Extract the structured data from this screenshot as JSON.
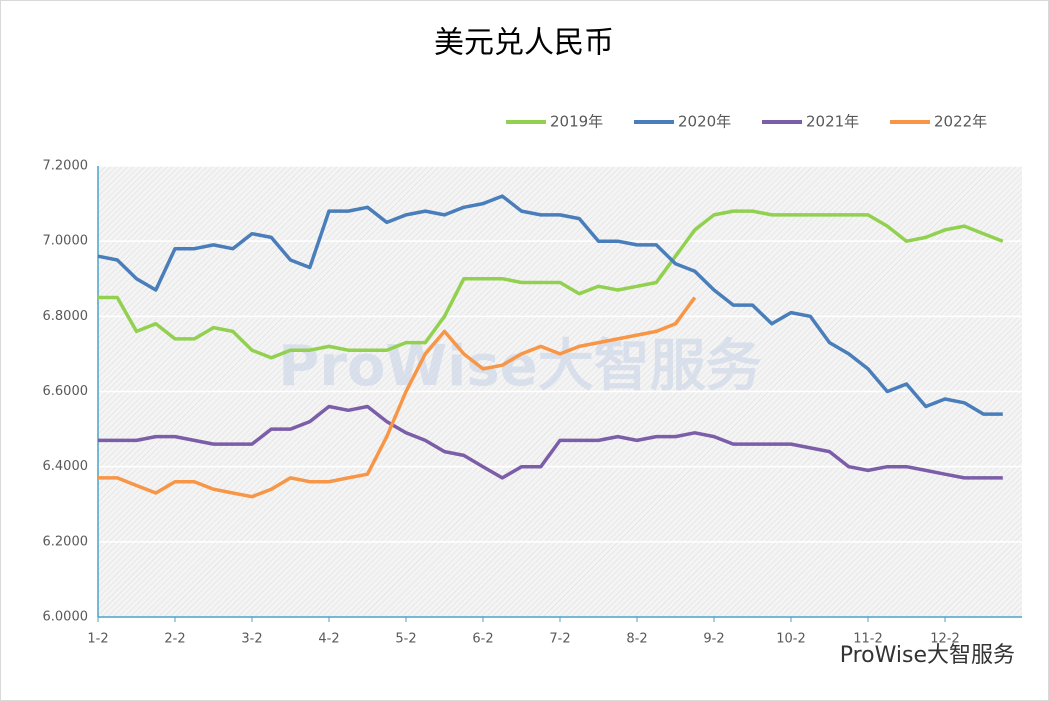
{
  "chart_data": {
    "type": "line",
    "title": "美元兑人民币",
    "categories": [
      "1-2",
      null,
      null,
      null,
      "2-2",
      null,
      null,
      null,
      "3-2",
      null,
      null,
      null,
      "4-2",
      null,
      null,
      null,
      "5-2",
      null,
      null,
      null,
      "6-2",
      null,
      null,
      null,
      "7-2",
      null,
      null,
      null,
      "8-2",
      null,
      null,
      null,
      "9-2",
      null,
      null,
      null,
      "10-2",
      null,
      null,
      null,
      "11-2",
      null,
      null,
      null,
      "12-2",
      null,
      null,
      null
    ],
    "series": [
      {
        "name": "2019年",
        "color": "#92d050",
        "values": [
          6.85,
          6.85,
          6.76,
          6.78,
          6.74,
          6.74,
          6.77,
          6.76,
          6.71,
          6.69,
          6.71,
          6.71,
          6.72,
          6.71,
          6.71,
          6.71,
          6.73,
          6.73,
          6.8,
          6.9,
          6.9,
          6.9,
          6.89,
          6.89,
          6.89,
          6.86,
          6.88,
          6.87,
          6.88,
          6.89,
          6.96,
          7.03,
          7.07,
          7.08,
          7.08,
          7.07,
          7.07,
          7.07,
          7.07,
          7.07,
          7.07,
          7.04,
          7.0,
          7.01,
          7.03,
          7.04,
          7.02,
          7.0
        ]
      },
      {
        "name": "2020年",
        "color": "#4a7ebb",
        "values": [
          6.96,
          6.95,
          6.9,
          6.87,
          6.98,
          6.98,
          6.99,
          6.98,
          7.02,
          7.01,
          6.95,
          6.93,
          7.08,
          7.08,
          7.09,
          7.05,
          7.07,
          7.08,
          7.07,
          7.09,
          7.1,
          7.12,
          7.08,
          7.07,
          7.07,
          7.06,
          7.0,
          7.0,
          6.99,
          6.99,
          6.94,
          6.92,
          6.87,
          6.83,
          6.83,
          6.78,
          6.81,
          6.8,
          6.73,
          6.7,
          6.66,
          6.6,
          6.62,
          6.56,
          6.58,
          6.57,
          6.54,
          6.54
        ]
      },
      {
        "name": "2021年",
        "color": "#7b5ea7",
        "values": [
          6.47,
          6.47,
          6.47,
          6.48,
          6.48,
          6.47,
          6.46,
          6.46,
          6.46,
          6.5,
          6.5,
          6.52,
          6.56,
          6.55,
          6.56,
          6.52,
          6.49,
          6.47,
          6.44,
          6.43,
          6.4,
          6.37,
          6.4,
          6.4,
          6.47,
          6.47,
          6.47,
          6.48,
          6.47,
          6.48,
          6.48,
          6.49,
          6.48,
          6.46,
          6.46,
          6.46,
          6.46,
          6.45,
          6.44,
          6.4,
          6.39,
          6.4,
          6.4,
          6.39,
          6.38,
          6.37,
          6.37,
          6.37
        ]
      },
      {
        "name": "2022年",
        "color": "#f79646",
        "values": [
          6.37,
          6.37,
          6.35,
          6.33,
          6.36,
          6.36,
          6.34,
          6.33,
          6.32,
          6.34,
          6.37,
          6.36,
          6.36,
          6.37,
          6.38,
          6.48,
          6.6,
          6.7,
          6.76,
          6.7,
          6.66,
          6.67,
          6.7,
          6.72,
          6.7,
          6.72,
          6.73,
          6.74,
          6.75,
          6.76,
          6.78,
          6.85,
          null,
          null,
          null,
          null,
          null,
          null,
          null,
          null,
          null,
          null,
          null,
          null,
          null,
          null,
          null,
          null
        ]
      }
    ],
    "ylim": [
      6.0,
      7.2
    ],
    "yticks": [
      {
        "value": 6.0,
        "label": "6.0000"
      },
      {
        "value": 6.2,
        "label": "6.2000"
      },
      {
        "value": 6.4,
        "label": "6.4000"
      },
      {
        "value": 6.6,
        "label": "6.6000"
      },
      {
        "value": 6.8,
        "label": "6.8000"
      },
      {
        "value": 7.0,
        "label": "7.0000"
      },
      {
        "value": 7.2,
        "label": "7.2000"
      }
    ],
    "grid": true,
    "legend": "top-right"
  },
  "watermark": "ProWise大智服务",
  "footer": "ProWise大智服务"
}
